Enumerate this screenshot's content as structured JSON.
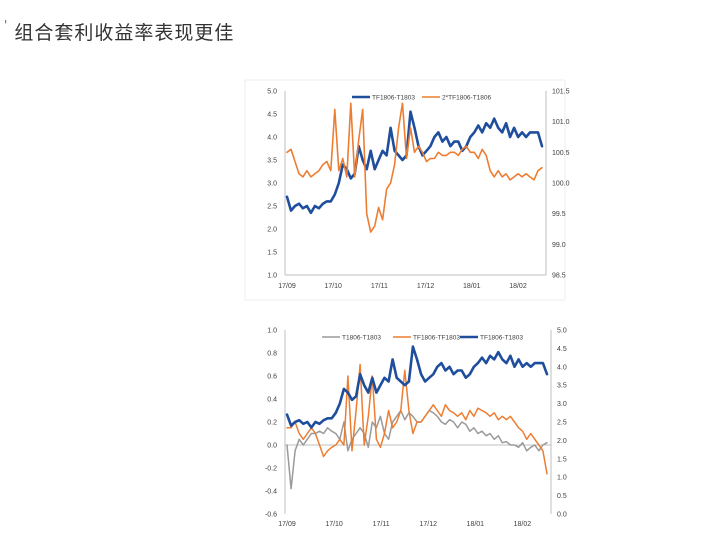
{
  "page": {
    "marker": "'",
    "heading": "组合套利收益率表现更佳"
  },
  "colors": {
    "blue": "#1f4e9c",
    "orange": "#ed7d31",
    "gray": "#9a9a9a",
    "axis": "#bfbfbf",
    "text": "#404040"
  },
  "chart_data": [
    {
      "type": "line",
      "x_labels": [
        "17/09",
        "17/10",
        "17/11",
        "17/12",
        "18/01",
        "18/02"
      ],
      "left_ticks": [
        "5.0",
        "4.5",
        "4.0",
        "3.5",
        "3.0",
        "2.5",
        "2.0",
        "1.5",
        "1.0"
      ],
      "right_ticks": [
        "101.5",
        "101.0",
        "100.5",
        "100.0",
        "99.5",
        "99.0",
        "98.5"
      ],
      "ylim_left": [
        1.0,
        5.0
      ],
      "ylim_right": [
        98.5,
        101.5
      ],
      "legend_position": "top",
      "series": [
        {
          "name": "TF1806-T1803",
          "axis": "left",
          "color": "#1f4e9c",
          "width": 2.6,
          "values": [
            2.7,
            2.4,
            2.5,
            2.55,
            2.45,
            2.5,
            2.35,
            2.5,
            2.45,
            2.55,
            2.6,
            2.6,
            2.75,
            3.0,
            3.4,
            3.3,
            3.1,
            3.2,
            3.8,
            3.5,
            3.3,
            3.7,
            3.3,
            3.5,
            3.7,
            3.6,
            4.2,
            3.7,
            3.6,
            3.5,
            3.6,
            4.55,
            4.2,
            3.8,
            3.6,
            3.7,
            3.8,
            4.0,
            4.1,
            3.9,
            4.0,
            3.8,
            3.9,
            3.9,
            3.7,
            3.8,
            4.0,
            4.1,
            4.25,
            4.1,
            4.3,
            4.2,
            4.4,
            4.2,
            4.1,
            4.3,
            4.0,
            4.2,
            4.0,
            4.1,
            4.0,
            4.1,
            4.1,
            4.1,
            3.8
          ]
        },
        {
          "name": "2*TF1806-T1806",
          "axis": "right",
          "color": "#ed7d31",
          "width": 1.6,
          "values": [
            100.5,
            100.55,
            100.35,
            100.15,
            100.1,
            100.2,
            100.1,
            100.15,
            100.2,
            100.3,
            100.35,
            100.2,
            101.2,
            100.2,
            100.4,
            100.1,
            101.3,
            100.1,
            100.7,
            101.2,
            99.5,
            99.2,
            99.3,
            99.6,
            99.4,
            99.9,
            100.0,
            100.3,
            100.9,
            101.3,
            100.4,
            100.9,
            100.5,
            100.6,
            100.5,
            100.35,
            100.4,
            100.4,
            100.5,
            100.45,
            100.45,
            100.5,
            100.5,
            100.45,
            100.55,
            100.6,
            100.5,
            100.5,
            100.4,
            100.55,
            100.45,
            100.2,
            100.1,
            100.2,
            100.1,
            100.15,
            100.05,
            100.1,
            100.15,
            100.1,
            100.15,
            100.1,
            100.05,
            100.2,
            100.25
          ]
        }
      ]
    },
    {
      "type": "line",
      "x_labels": [
        "17/09",
        "17/10",
        "17/11",
        "17/12",
        "18/01",
        "18/02"
      ],
      "left_ticks": [
        "1.0",
        "0.8",
        "0.6",
        "0.4",
        "0.2",
        "0.0",
        "-0.2",
        "-0.4",
        "-0.6"
      ],
      "right_ticks": [
        "5.0",
        "4.5",
        "4.0",
        "3.5",
        "3.0",
        "2.5",
        "2.0",
        "1.5",
        "1.0",
        "0.5",
        "0.0"
      ],
      "ylim_left": [
        -0.6,
        1.0
      ],
      "ylim_right": [
        0.0,
        5.0
      ],
      "legend_position": "top",
      "series": [
        {
          "name": "T1806-T1803",
          "axis": "left",
          "color": "#9a9a9a",
          "width": 1.5,
          "values": [
            0.0,
            -0.38,
            -0.05,
            0.05,
            0.0,
            0.05,
            0.1,
            0.1,
            0.12,
            0.1,
            0.15,
            0.12,
            0.1,
            0.05,
            0.2,
            -0.05,
            0.05,
            0.1,
            0.15,
            0.1,
            -0.02,
            0.2,
            0.15,
            0.25,
            0.1,
            0.05,
            0.2,
            0.25,
            0.3,
            0.22,
            0.28,
            0.25,
            0.2,
            0.2,
            0.25,
            0.3,
            0.28,
            0.25,
            0.2,
            0.18,
            0.22,
            0.2,
            0.15,
            0.2,
            0.18,
            0.12,
            0.15,
            0.1,
            0.12,
            0.08,
            0.1,
            0.05,
            0.08,
            0.02,
            0.03,
            0.0,
            0.0,
            -0.02,
            0.02,
            -0.05,
            -0.02,
            0.0,
            -0.05,
            0.0,
            0.02
          ]
        },
        {
          "name": "TF1806-TF1803",
          "axis": "left",
          "color": "#ed7d31",
          "width": 1.5,
          "values": [
            0.15,
            0.15,
            0.2,
            0.1,
            0.05,
            0.1,
            0.15,
            0.1,
            0.0,
            -0.1,
            -0.05,
            -0.02,
            0.0,
            0.05,
            0.0,
            0.6,
            -0.05,
            0.3,
            0.7,
            0.0,
            0.25,
            0.6,
            0.05,
            -0.02,
            0.1,
            0.3,
            0.15,
            0.2,
            0.3,
            0.65,
            0.3,
            0.1,
            0.2,
            0.2,
            0.25,
            0.3,
            0.35,
            0.3,
            0.25,
            0.35,
            0.3,
            0.28,
            0.25,
            0.28,
            0.22,
            0.3,
            0.25,
            0.32,
            0.3,
            0.28,
            0.25,
            0.28,
            0.22,
            0.25,
            0.22,
            0.25,
            0.2,
            0.15,
            0.12,
            0.05,
            0.1,
            0.05,
            0.0,
            -0.05,
            -0.25
          ]
        },
        {
          "name": "TF1806-T1803",
          "axis": "right",
          "color": "#1f4e9c",
          "width": 2.6,
          "values": [
            2.7,
            2.4,
            2.5,
            2.55,
            2.45,
            2.5,
            2.35,
            2.5,
            2.45,
            2.55,
            2.6,
            2.6,
            2.75,
            3.0,
            3.4,
            3.3,
            3.1,
            3.2,
            3.8,
            3.5,
            3.3,
            3.7,
            3.3,
            3.5,
            3.7,
            3.6,
            4.2,
            3.7,
            3.6,
            3.5,
            3.6,
            4.55,
            4.2,
            3.8,
            3.6,
            3.7,
            3.8,
            4.0,
            4.1,
            3.9,
            4.0,
            3.8,
            3.9,
            3.9,
            3.7,
            3.8,
            4.0,
            4.1,
            4.25,
            4.1,
            4.3,
            4.2,
            4.4,
            4.2,
            4.1,
            4.3,
            4.0,
            4.2,
            4.0,
            4.1,
            4.0,
            4.1,
            4.1,
            4.1,
            3.8
          ]
        }
      ]
    }
  ]
}
